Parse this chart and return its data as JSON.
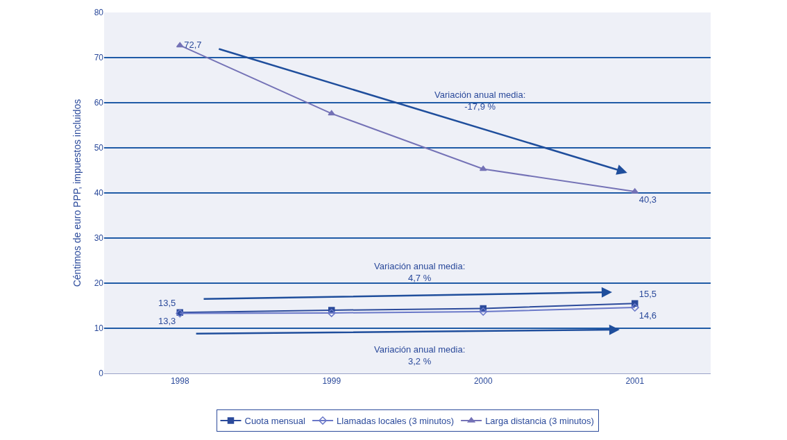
{
  "chart_data": {
    "type": "line",
    "ylabel": "Céntimos de euro PPP, impuestos incluidos",
    "categories": [
      "1998",
      "1999",
      "2000",
      "2001"
    ],
    "series": [
      {
        "name": "Cuota mensual",
        "color": "#2b4a9b",
        "marker": "square",
        "values": [
          13.5,
          14.0,
          14.4,
          15.5
        ],
        "value_labels": [
          "13,5",
          null,
          null,
          "15,5"
        ]
      },
      {
        "name": "Llamadas locales (3 minutos)",
        "color": "#6a78c8",
        "marker": "diamond-open",
        "values": [
          13.3,
          13.4,
          13.7,
          14.6
        ],
        "value_labels": [
          "13,3",
          null,
          null,
          "14,6"
        ]
      },
      {
        "name": "Larga distancia (3 minutos)",
        "color": "#7472b6",
        "marker": "triangle",
        "values": [
          72.7,
          57.6,
          45.3,
          40.3
        ],
        "value_labels": [
          "72,7",
          null,
          null,
          "40,3"
        ]
      }
    ],
    "annotations": [
      "Variación anual media:\n-17,9 %",
      "Variación anual media:\n4,7 %",
      "Variación anual media:\n3,2 %"
    ],
    "ylim": [
      0,
      80
    ],
    "yticks": [
      0,
      10,
      20,
      30,
      40,
      50,
      60,
      70,
      80
    ],
    "grid": "y",
    "legend": "bottom"
  }
}
